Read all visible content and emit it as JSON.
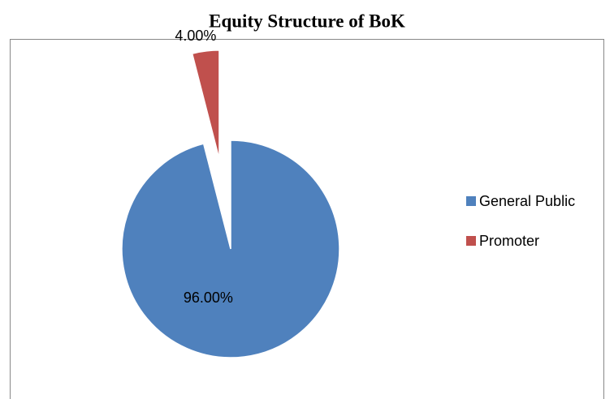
{
  "chart_data": {
    "type": "pie",
    "title": "Equity Structure of BoK",
    "categories": [
      "General Public",
      "Promoter"
    ],
    "values": [
      96,
      4
    ],
    "value_labels": [
      "96.00%",
      "4.00%"
    ],
    "colors": [
      "#4f81bd",
      "#c0504d"
    ],
    "legend": "right"
  }
}
